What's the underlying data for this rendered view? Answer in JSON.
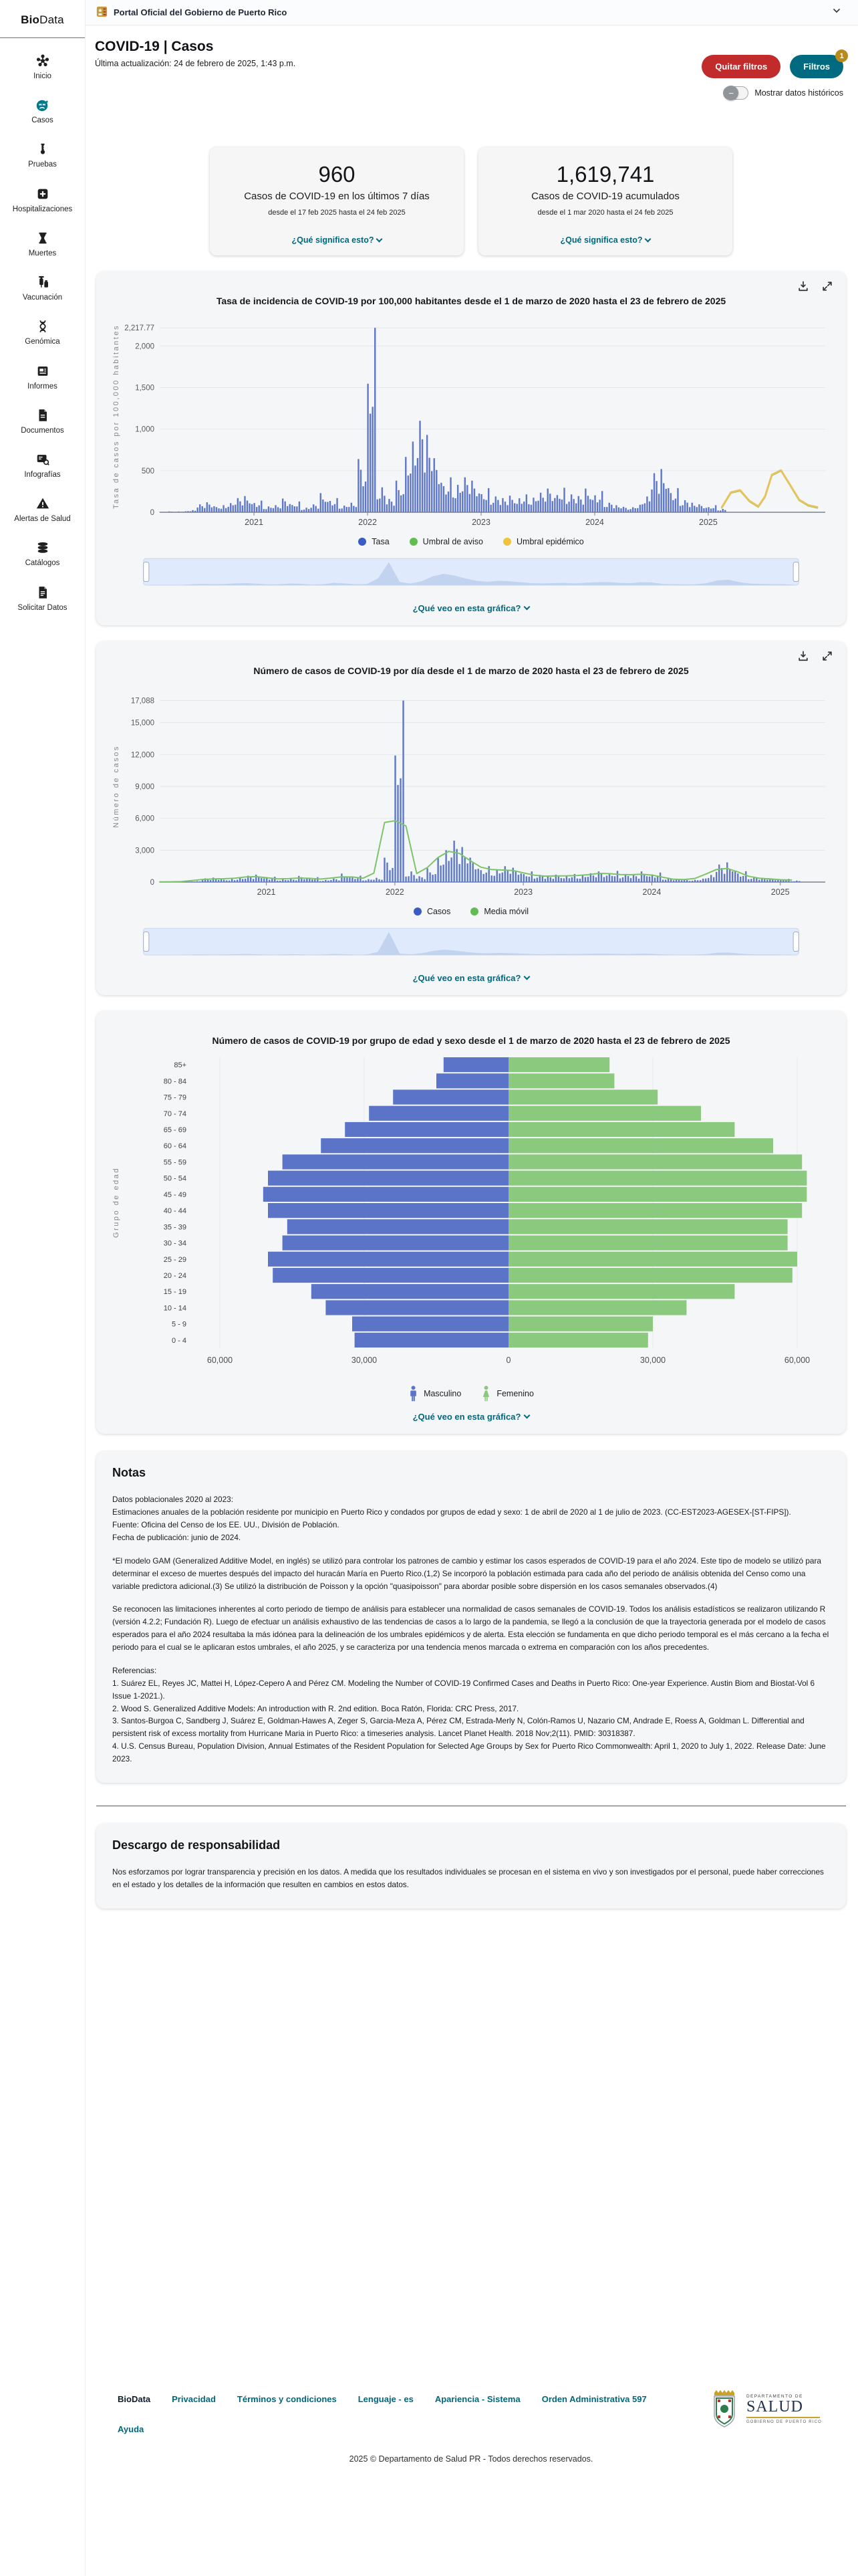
{
  "banner": {
    "title": "Portal Oficial del Gobierno de Puerto Rico"
  },
  "sidebar": {
    "logo_bold": "Bio",
    "logo_rest": "Data",
    "items": [
      {
        "label": "Inicio",
        "icon": "network-icon"
      },
      {
        "label": "Casos",
        "icon": "sick-face-icon",
        "active": true
      },
      {
        "label": "Pruebas",
        "icon": "test-tube-icon"
      },
      {
        "label": "Hospitalizaciones",
        "icon": "medical-cross-icon"
      },
      {
        "label": "Muertes",
        "icon": "hourglass-icon"
      },
      {
        "label": "Vacunación",
        "icon": "syringe-icon"
      },
      {
        "label": "Genómica",
        "icon": "dna-icon"
      },
      {
        "label": "Informes",
        "icon": "report-icon"
      },
      {
        "label": "Documentos",
        "icon": "document-icon"
      },
      {
        "label": "Infografías",
        "icon": "infographic-icon"
      },
      {
        "label": "Alertas de Salud",
        "icon": "alert-triangle-icon"
      },
      {
        "label": "Catálogos",
        "icon": "database-icon"
      },
      {
        "label": "Solicitar Datos",
        "icon": "request-file-icon"
      }
    ]
  },
  "header": {
    "title": "COVID-19 | Casos",
    "updated": "Última actualización: 24 de febrero de 2025, 1:43 p.m."
  },
  "controls": {
    "remove_filters": "Quitar filtros",
    "filters": "Filtros",
    "filters_badge": "1",
    "toggle_label": "Mostrar datos históricos",
    "toggle_state": "off"
  },
  "stat_cards": [
    {
      "value": "960",
      "label": "Casos de COVID-19 en los últimos 7 días",
      "range": "desde el 17 feb 2025 hasta el 24 feb 2025",
      "link": "¿Qué significa esto?"
    },
    {
      "value": "1,619,741",
      "label": "Casos de COVID-19 acumulados",
      "range": "desde el 1 mar 2020 hasta el 24 feb 2025",
      "link": "¿Qué significa esto?"
    }
  ],
  "colors": {
    "accent_teal": "#00687e",
    "button_red": "#c22b2b",
    "badge_gold": "#b98a1c",
    "bar_blue": "#5e77c9",
    "ma_green": "#7cc468",
    "threshold_yellow": "#e6c35c",
    "threshold_green": "#6cbf5a",
    "pyramid_male": "#5b74c8",
    "pyramid_female": "#8bc97e"
  },
  "chart_data": [
    {
      "type": "bar",
      "title": "Tasa de incidencia de COVID-19 por 100,000 habitantes desde el 1 de marzo de 2020 hasta el 23 de febrero de 2025",
      "ylabel": "Tasa de casos por 100,000 habitantes",
      "y_max": 2300,
      "y_ticks": [
        {
          "v": 2217.77,
          "label": "2,217.77"
        },
        {
          "v": 2000,
          "label": "2,000"
        },
        {
          "v": 1500,
          "label": "1,500"
        },
        {
          "v": 1000,
          "label": "1,000"
        },
        {
          "v": 500,
          "label": "500"
        },
        {
          "v": 0,
          "label": "0"
        }
      ],
      "x_domain": [
        2020.17,
        2026.03
      ],
      "x_ticks": [
        2021,
        2022,
        2023,
        2024,
        2025
      ],
      "bars": {
        "name": "Tasa",
        "color": "#5e77c9",
        "start": 2020.17,
        "step_years": 0.0833333,
        "values": [
          5,
          10,
          12,
          25,
          95,
          120,
          85,
          110,
          170,
          195,
          140,
          70,
          85,
          165,
          130,
          55,
          95,
          230,
          170,
          80,
          115,
          640,
          2217.77,
          300,
          160,
          380,
          850,
          1100,
          930,
          650,
          420,
          330,
          420,
          380,
          290,
          190,
          170,
          200,
          215,
          175,
          235,
          285,
          295,
          215,
          195,
          285,
          255,
          115,
          85,
          65,
          90,
          190,
          470,
          520,
          290,
          145,
          115,
          95,
          85,
          40
        ]
      },
      "lines": [
        {
          "name": "Umbral de aviso",
          "color": "#6cbf5a",
          "width": 2,
          "x": [
            2025.12,
            2025.2,
            2025.28,
            2025.36,
            2025.44,
            2025.5,
            2025.56,
            2025.64,
            2025.72,
            2025.8,
            2025.88,
            2025.96
          ],
          "y": [
            52,
            232,
            257,
            132,
            62,
            182,
            442,
            497,
            322,
            142,
            77,
            52
          ]
        },
        {
          "name": "Umbral epidémico",
          "color": "#e6c35c",
          "width": 3,
          "x": [
            2025.12,
            2025.2,
            2025.28,
            2025.36,
            2025.44,
            2025.5,
            2025.56,
            2025.64,
            2025.72,
            2025.8,
            2025.88,
            2025.96
          ],
          "y": [
            60,
            240,
            265,
            140,
            70,
            190,
            450,
            505,
            330,
            150,
            85,
            60
          ]
        }
      ],
      "legend": [
        {
          "label": "Tasa",
          "color": "#3c5cc5"
        },
        {
          "label": "Umbral de aviso",
          "color": "#61bd4f"
        },
        {
          "label": "Umbral epidémico",
          "color": "#eec33f"
        }
      ],
      "help_label": "¿Qué veo en esta gráfica?"
    },
    {
      "type": "bar",
      "title": "Número de casos de COVID-19 por día desde el 1 de marzo de 2020 hasta el 23 de febrero de 2025",
      "ylabel": "Número de casos",
      "y_max": 18000,
      "y_ticks": [
        {
          "v": 17088,
          "label": "17,088"
        },
        {
          "v": 15000,
          "label": "15,000"
        },
        {
          "v": 12000,
          "label": "12,000"
        },
        {
          "v": 9000,
          "label": "9,000"
        },
        {
          "v": 6000,
          "label": "6,000"
        },
        {
          "v": 3000,
          "label": "3,000"
        },
        {
          "v": 0,
          "label": "0"
        }
      ],
      "x_domain": [
        2020.17,
        2025.35
      ],
      "x_ticks": [
        2021,
        2022,
        2023,
        2024,
        2025
      ],
      "bars": {
        "name": "Casos",
        "color": "#5e77c9",
        "start": 2020.17,
        "step_years": 0.0833333,
        "values": [
          15,
          30,
          40,
          90,
          350,
          420,
          300,
          380,
          600,
          700,
          500,
          250,
          300,
          580,
          460,
          200,
          330,
          800,
          600,
          280,
          400,
          2300,
          17088,
          1000,
          550,
          1300,
          3000,
          3900,
          3300,
          2300,
          1500,
          1150,
          1500,
          1350,
          1000,
          680,
          600,
          700,
          760,
          620,
          830,
          1000,
          1050,
          760,
          690,
          1000,
          900,
          410,
          300,
          230,
          320,
          670,
          1650,
          1850,
          1020,
          510,
          410,
          340,
          300,
          140
        ]
      },
      "lines": [
        {
          "name": "Media móvil",
          "color": "#7cc468",
          "width": 2,
          "start": 2020.17,
          "step_years": 0.0833333,
          "y": [
            19,
            24,
            45,
            136,
            244,
            303,
            312,
            363,
            476,
            510,
            411,
            298,
            320,
            380,
            351,
            281,
            377,
            490,
            476,
            363,
            844,
            5606,
            5777,
            5281,
            808,
            1374,
            2323,
            2890,
            2692,
            2012,
            1402,
            1176,
            1133,
            1091,
            858,
            646,
            561,
            584,
            589,
            626,
            694,
            816,
            796,
            708,
            694,
            734,
            654,
            456,
            266,
            241,
            346,
            748,
            1181,
            1281,
            958,
            550,
            357,
            297,
            221,
            187
          ]
        }
      ],
      "legend": [
        {
          "label": "Casos",
          "color": "#3c5cc5"
        },
        {
          "label": "Media móvil",
          "color": "#61bd4f"
        }
      ],
      "help_label": "¿Qué veo en esta gráfica?"
    },
    {
      "type": "pyramid",
      "title": "Número de casos de COVID-19 por grupo de edad y sexo desde el 1 de marzo de 2020 hasta el 23 de febrero de 2025",
      "ylabel": "Grupo de edad",
      "groups": [
        "85+",
        "80 - 84",
        "75 - 79",
        "70 - 74",
        "65 - 69",
        "60 - 64",
        "55 - 59",
        "50 - 54",
        "45 - 49",
        "40 - 44",
        "35 - 39",
        "30 - 34",
        "25 - 29",
        "20 - 24",
        "15 - 19",
        "10 - 14",
        "5 - 9",
        "0 - 4"
      ],
      "male": {
        "label": "Masculino",
        "color": "#5b74c8",
        "values": [
          13500,
          15000,
          24000,
          29000,
          34000,
          39000,
          47000,
          50000,
          51000,
          50000,
          46000,
          47000,
          50000,
          49000,
          41000,
          38000,
          32500,
          32000
        ]
      },
      "female": {
        "label": "Femenino",
        "color": "#8bc97e",
        "values": [
          21000,
          22000,
          31000,
          40000,
          47000,
          55000,
          61000,
          62000,
          62000,
          61000,
          58000,
          58000,
          60000,
          59000,
          47000,
          37000,
          30000,
          29000
        ]
      },
      "x_max": 65000,
      "x_ticks": [
        -60000,
        -30000,
        0,
        30000,
        60000
      ],
      "x_tick_labels": [
        "60,000",
        "30,000",
        "0",
        "30,000",
        "60,000"
      ],
      "help_label": "¿Qué veo en esta gráfica?"
    }
  ],
  "notes": {
    "title": "Notas",
    "p1": "Datos poblacionales 2020 al 2023:\nEstimaciones anuales de la población residente por municipio en Puerto Rico y condados por grupos de edad y sexo: 1 de abril de 2020 al 1 de julio de 2023. (CC-EST2023-AGESEX-[ST-FIPS]).\nFuente: Oficina del Censo de los EE. UU., División de Población.\nFecha de publicación: junio de 2024.",
    "p2": "*El modelo GAM (Generalized Additive Model, en inglés) se utilizó para controlar los patrones de cambio y estimar los casos esperados de COVID-19 para el año 2024. Este tipo de modelo se utilizó para determinar el exceso de muertes después del impacto del huracán María en Puerto Rico.(1,2) Se incorporó la población estimada para cada año del periodo de análisis obtenida del Censo como una variable predictora adicional.(3) Se utilizó la distribución de Poisson y la opción \"quasipoisson\" para abordar posible sobre dispersión en los casos semanales observados.(4)",
    "p3": "Se reconocen las limitaciones inherentes al corto periodo de tiempo de análisis para establecer una normalidad de casos semanales de COVID-19. Todos los análisis estadísticos se realizaron utilizando R (versión 4.2.2; Fundación R). Luego de efectuar un análisis exhaustivo de las tendencias de casos a lo largo de la pandemia, se llegó a la conclusión de que la trayectoria generada por el modelo de casos esperados para el año 2024 resultaba la más idónea para la delineación de los umbrales epidémicos y de alerta. Esta elección se fundamenta en que dicho periodo temporal es el más cercano a la fecha el periodo para el cual se le aplicaran estos umbrales, el año 2025, y se caracteriza por una tendencia menos marcada o extrema en comparación con los años precedentes.",
    "p4": "Referencias:\n1. Suárez EL, Reyes JC, Mattei H, López-Cepero A and Pérez CM. Modeling the Number of COVID-19 Confirmed Cases and Deaths in Puerto Rico: One-year Experience. Austin Biom and Biostat-Vol 6 Issue 1-2021.).\n2. Wood S. Generalized Additive Models: An introduction with R. 2nd edition. Boca Ratón, Florida: CRC Press, 2017.\n3. Santos-Burgoa C, Sandberg J, Suárez E, Goldman-Hawes A, Zeger S, Garcia-Meza A, Pérez CM, Estrada-Merly N, Colón-Ramos U, Nazario CM, Andrade E, Roess A, Goldman L. Differential and persistent risk of excess mortality from Hurricane Maria in Puerto Rico: a timeseries analysis. Lancet Planet Health. 2018 Nov;2(11). PMID: 30318387.\n4. U.S. Census Bureau, Population Division, Annual Estimates of the Resident Population for Selected Age Groups by Sex for Puerto Rico Commonwealth: April 1, 2020 to July 1, 2022. Release Date: June 2023."
  },
  "disclaimer": {
    "title": "Descargo de responsabilidad",
    "text": "Nos esforzamos por lograr transparencia y precisión en los datos. A medida que los resultados individuales se procesan en el sistema en vivo y son investigados por el personal, puede haber correcciones en el estado y los detalles de la información que resulten en cambios en estos datos."
  },
  "footer": {
    "biodata_bold": "Bio",
    "biodata_rest": "Data",
    "links": [
      "Privacidad",
      "Términos y condiciones",
      "Lenguaje - es",
      "Apariencia - Sistema",
      "Orden Administrativa 597"
    ],
    "help": "Ayuda",
    "copyright": "2025 © Departamento de Salud PR - Todos derechos reservados.",
    "logo": {
      "dept_small": "DEPARTAMENTO DE",
      "dept_big": "SALUD",
      "gov": "GOBIERNO DE PUERTO RICO"
    }
  }
}
